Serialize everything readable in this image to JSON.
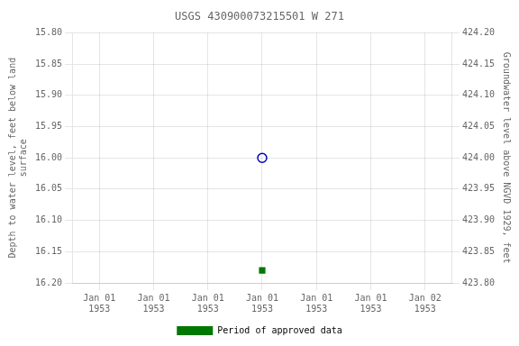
{
  "chart_data": {
    "type": "scatter",
    "title": "USGS 430900073215501 W 271",
    "y_label": "Depth to water level, feet below land\nsurface",
    "y2_label": "Groundwater level above NGVD 1929, feet",
    "categories": [
      "Jan 01\n1953",
      "Jan 01\n1953",
      "Jan 01\n1953",
      "Jan 01\n1953",
      "Jan 01\n1953",
      "Jan 01\n1953",
      "Jan 02\n1953"
    ],
    "series": [
      {
        "color": "#0000bb",
        "marker": "circle",
        "values": [
          null,
          null,
          null,
          16.0,
          null,
          null,
          null
        ]
      },
      {
        "name": "Period of approved data",
        "color": "#007700",
        "marker": "square",
        "values": [
          null,
          null,
          null,
          16.18,
          null,
          null,
          null
        ]
      }
    ],
    "ylim": [
      16.2,
      15.8
    ],
    "yticks": [
      {
        "value": 15.8,
        "label": "15.80"
      },
      15.85,
      {
        "value": 15.9,
        "label": "15.90"
      },
      15.95,
      {
        "value": 16.0,
        "label": "16.00"
      },
      16.05,
      {
        "value": 16.1,
        "label": "16.10"
      },
      16.15,
      {
        "value": 16.2,
        "label": "16.20"
      }
    ],
    "y2lim": [
      423.8,
      424.2
    ],
    "y2ticks": [
      {
        "value": 424.2,
        "label": "424.20"
      },
      424.15,
      {
        "value": 424.1,
        "label": "424.10"
      },
      424.05,
      {
        "value": 424.0,
        "label": "424.00"
      },
      423.95,
      {
        "value": 423.9,
        "label": "423.90"
      },
      423.85,
      {
        "value": 423.8,
        "label": "423.80"
      }
    ],
    "grid": true,
    "legend": "bottom"
  }
}
